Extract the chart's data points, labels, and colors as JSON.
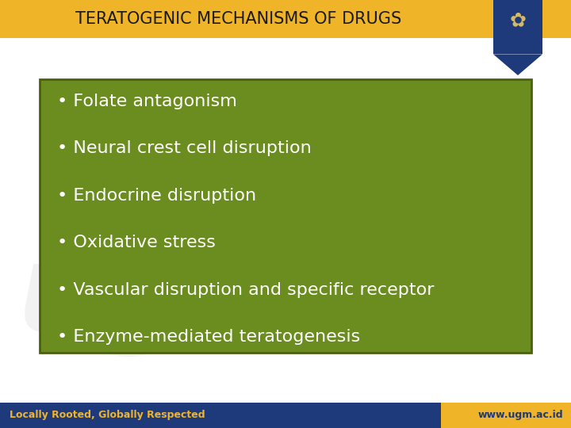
{
  "title": "TERATOGENIC MECHANISMS OF DRUGS",
  "title_fontsize": 15,
  "title_color": "#1a1a1a",
  "bg_color": "#ffffff",
  "header_bar_color": "#f0b429",
  "green_box_color": "#6b8c1e",
  "green_box_border_color": "#4a6010",
  "bullet_items": [
    "Folate antagonism",
    "Neural crest cell disruption",
    "Endocrine disruption",
    "Oxidative stress",
    "Vascular disruption and specific receptor",
    "Enzyme-mediated teratogenesis"
  ],
  "bullet_fontsize": 16,
  "bullet_color": "#ffffff",
  "footer_bar_color": "#1e3a7a",
  "footer_accent_color": "#f0b429",
  "footer_left_text": "Locally Rooted, Globally Respected",
  "footer_right_text": "www.ugm.ac.id",
  "footer_fontsize": 9,
  "footer_text_color": "#f0b429",
  "footer_right_text_color": "#1e3a7a",
  "emblem_ribbon_color": "#1e3a7a",
  "watermark_color": "#e0e0e0"
}
